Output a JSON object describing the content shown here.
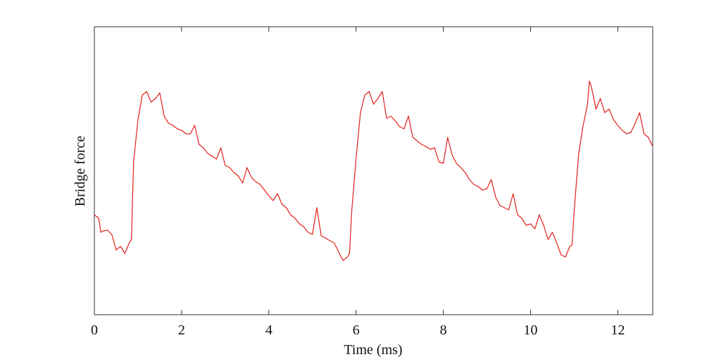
{
  "chart_data": {
    "type": "line",
    "x_label": "Time (ms)",
    "y_label": "Bridge force",
    "xlim": [
      0,
      12.8
    ],
    "xticks": [
      0,
      2,
      4,
      6,
      8,
      10,
      12
    ],
    "ylim": [
      0,
      409
    ],
    "x": [
      0,
      0.1,
      0.15,
      0.2,
      0.3,
      0.4,
      0.5,
      0.6,
      0.7,
      0.8,
      0.85,
      0.9,
      1.0,
      1.1,
      1.2,
      1.3,
      1.4,
      1.5,
      1.6,
      1.7,
      1.8,
      1.9,
      2.0,
      2.1,
      2.2,
      2.3,
      2.4,
      2.5,
      2.6,
      2.7,
      2.8,
      2.9,
      3.0,
      3.1,
      3.2,
      3.3,
      3.4,
      3.5,
      3.6,
      3.7,
      3.8,
      3.9,
      4.0,
      4.1,
      4.2,
      4.3,
      4.4,
      4.5,
      4.6,
      4.7,
      4.8,
      4.9,
      5.0,
      5.1,
      5.2,
      5.3,
      5.4,
      5.5,
      5.6,
      5.7,
      5.8,
      5.85,
      5.9,
      6.0,
      6.1,
      6.2,
      6.3,
      6.4,
      6.5,
      6.6,
      6.7,
      6.8,
      6.9,
      7.0,
      7.1,
      7.2,
      7.3,
      7.4,
      7.5,
      7.6,
      7.7,
      7.8,
      7.9,
      8.0,
      8.1,
      8.2,
      8.3,
      8.4,
      8.5,
      8.6,
      8.7,
      8.8,
      8.9,
      9.0,
      9.1,
      9.2,
      9.3,
      9.4,
      9.5,
      9.6,
      9.7,
      9.8,
      9.9,
      10.0,
      10.1,
      10.2,
      10.3,
      10.4,
      10.5,
      10.6,
      10.7,
      10.8,
      10.9,
      10.95,
      11.0,
      11.1,
      11.2,
      11.3,
      11.35,
      11.4,
      11.5,
      11.6,
      11.7,
      11.8,
      11.9,
      12.0,
      12.1,
      12.2,
      12.3,
      12.4,
      12.5,
      12.6,
      12.7,
      12.8
    ],
    "series": [
      {
        "color": "#e0201c",
        "values": [
          142,
          137,
          117,
          119,
          120,
          114,
          92,
          97,
          87,
          102,
          107,
          217,
          277,
          312,
          317,
          302,
          307,
          315,
          282,
          272,
          269,
          264,
          262,
          257,
          257,
          269,
          242,
          237,
          229,
          225,
          221,
          237,
          212,
          209,
          202,
          197,
          187,
          209,
          195,
          189,
          185,
          177,
          169,
          162,
          172,
          157,
          152,
          142,
          137,
          129,
          125,
          117,
          114,
          152,
          112,
          109,
          105,
          102,
          89,
          77,
          82,
          87,
          147,
          222,
          287,
          312,
          317,
          299,
          307,
          317,
          279,
          282,
          275,
          267,
          264,
          282,
          252,
          247,
          242,
          239,
          235,
          237,
          217,
          215,
          252,
          227,
          215,
          209,
          202,
          192,
          185,
          182,
          177,
          179,
          192,
          167,
          155,
          152,
          149,
          172,
          142,
          137,
          127,
          129,
          122,
          142,
          127,
          107,
          117,
          102,
          85,
          82,
          97,
          99,
          147,
          227,
          267,
          297,
          332,
          322,
          292,
          307,
          287,
          292,
          277,
          269,
          262,
          257,
          259,
          272,
          287,
          257,
          252,
          239
        ]
      }
    ]
  }
}
